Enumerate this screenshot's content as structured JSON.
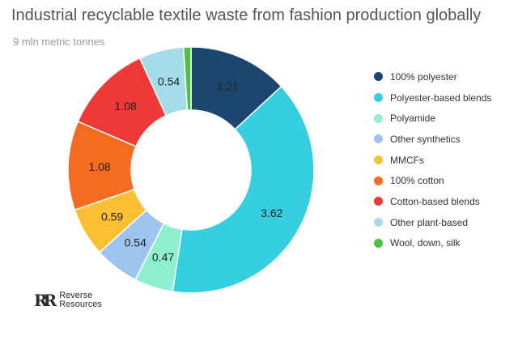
{
  "chart_data": {
    "type": "pie",
    "title": "Industrial recyclable textile waste from fashion production globally",
    "subtitle": "9 mln metric tonnes",
    "legend_position": "right",
    "slices": [
      {
        "name": "100% polyester",
        "value": 1.21,
        "label": "1.21",
        "color": "#1c4570",
        "label_color": "#222222"
      },
      {
        "name": "Polyester-based blends",
        "value": 3.62,
        "label": "3.62",
        "color": "#35cfe0",
        "label_color": "#222222"
      },
      {
        "name": "Polyamide",
        "value": 0.47,
        "label": "0.47",
        "color": "#8ff0cf",
        "label_color": "#222222"
      },
      {
        "name": "Other synthetics",
        "value": 0.54,
        "label": "0.54",
        "color": "#9dc4ef",
        "label_color": "#222222"
      },
      {
        "name": "MMCFs",
        "value": 0.59,
        "label": "0.59",
        "color": "#fbbf33",
        "label_color": "#222222"
      },
      {
        "name": "100% cotton",
        "value": 1.08,
        "label": "1.08",
        "color": "#f56b20",
        "label_color": "#222222"
      },
      {
        "name": "Cotton-based blends",
        "value": 1.08,
        "label": "1.08",
        "color": "#ee3a36",
        "label_color": "#222222"
      },
      {
        "name": "Other plant-based",
        "value": 0.54,
        "label": "0.54",
        "color": "#a5dcea",
        "label_color": "#222222"
      },
      {
        "name": "Wool, down, silk",
        "value": 0.09,
        "label": "",
        "color": "#4cc13d",
        "label_color": "#222222"
      }
    ]
  },
  "brand": {
    "mark": "RR",
    "name": "Reverse\nResources"
  }
}
